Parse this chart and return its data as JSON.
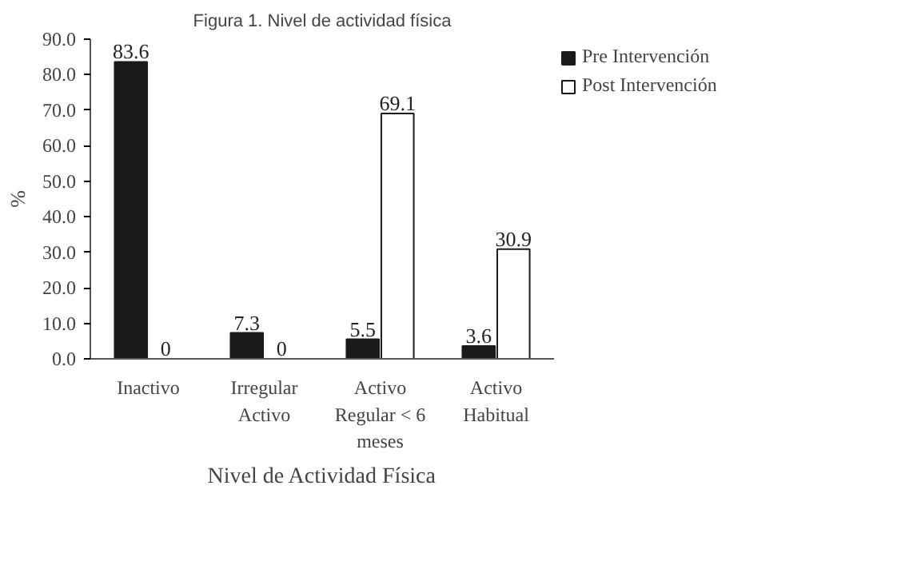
{
  "chart_data": {
    "type": "bar",
    "title": "Figura 1. Nivel de actividad física",
    "xlabel": "Nivel de Actividad Física",
    "ylabel": "%",
    "categories": [
      "Inactivo",
      "Irregular Activo",
      "Activo Regular < 6 meses",
      "Activo Habitual"
    ],
    "series": [
      {
        "name": "Pre Intervención",
        "color": "#1a1a1a",
        "values": [
          83.6,
          7.3,
          5.5,
          3.6
        ]
      },
      {
        "name": "Post Intervención",
        "color": "#ffffff",
        "values": [
          0,
          0,
          69.1,
          30.9
        ]
      }
    ],
    "ylim": [
      0,
      90
    ],
    "yticks": [
      {
        "value": 0,
        "label": "0.0"
      },
      {
        "value": 10,
        "label": "10.0"
      },
      {
        "value": 20,
        "label": "20.0"
      },
      {
        "value": 30,
        "label": "30.0"
      },
      {
        "value": 40,
        "label": "40.0"
      },
      {
        "value": 50,
        "label": "50.0"
      },
      {
        "value": 60,
        "label": "60.0"
      },
      {
        "value": 70,
        "label": "70.0"
      },
      {
        "value": 80,
        "label": "80.0"
      },
      {
        "value": 90,
        "label": "90.0"
      }
    ],
    "data_labels": true,
    "grid": false,
    "legend": "right"
  }
}
